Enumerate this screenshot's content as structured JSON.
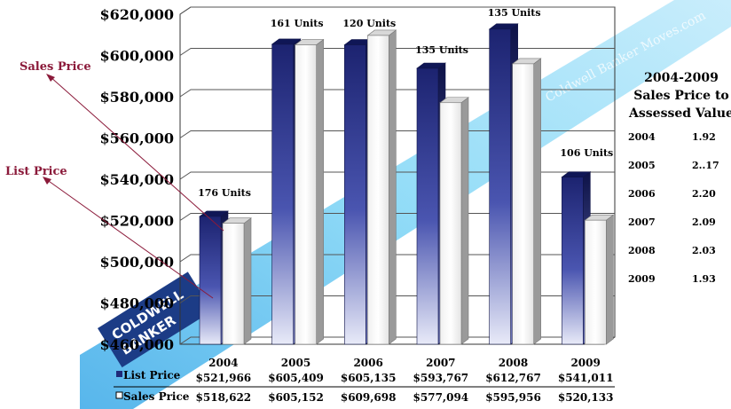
{
  "chart_data": {
    "type": "bar",
    "categories": [
      "2004",
      "2005",
      "2006",
      "2007",
      "2008",
      "2009"
    ],
    "series": [
      {
        "name": "List Price",
        "values": [
          521966,
          605409,
          605135,
          593767,
          612767,
          541011
        ],
        "labels": [
          "$521,966",
          "$605,409",
          "$605,135",
          "$593,767",
          "$612,767",
          "$541,011"
        ]
      },
      {
        "name": "Sales Price",
        "values": [
          518622,
          605152,
          609698,
          577094,
          595956,
          520133
        ],
        "labels": [
          "$518,622",
          "$605,152",
          "$609,698",
          "$577,094",
          "$595,956",
          "$520,133"
        ]
      }
    ],
    "unit_labels": [
      "176 Units",
      "161 Units",
      "120 Units",
      "135 Units",
      "135 Units",
      "106 Units"
    ],
    "ylim": [
      460000,
      620000
    ],
    "y_ticks": [
      {
        "value": 460000,
        "label": "$460,000"
      },
      {
        "value": 480000,
        "label": "$480,000"
      },
      {
        "value": 500000,
        "label": "$500,000"
      },
      {
        "value": 520000,
        "label": "$520,000"
      },
      {
        "value": 540000,
        "label": "$540,000"
      },
      {
        "value": 560000,
        "label": "$560,000"
      },
      {
        "value": 580000,
        "label": "$580,000"
      },
      {
        "value": 600000,
        "label": "$600,000"
      },
      {
        "value": 620000,
        "label": "$620,000"
      }
    ],
    "grid": true,
    "legend_placement": "bottom-left (data table)",
    "annotations": [
      "Sales Price",
      "List Price"
    ],
    "colors": {
      "list_price": "#1f2a7a",
      "sales_price": "#ffffff",
      "annotation_text": "#8b1a3a",
      "banner": "#58c6f0"
    }
  },
  "side_panel": {
    "title_line1": "2004-2009",
    "title_line2": "Sales Price to",
    "title_line3": "Assessed Value",
    "rows": [
      {
        "year": "2004",
        "ratio": "1.92"
      },
      {
        "year": "2005",
        "ratio": "2..17"
      },
      {
        "year": "2006",
        "ratio": "2.20"
      },
      {
        "year": "2007",
        "ratio": "2.09"
      },
      {
        "year": "2008",
        "ratio": "2.03"
      },
      {
        "year": "2009",
        "ratio": "1.93"
      }
    ]
  },
  "watermark": {
    "brand_text": "Coldwell Banker Moves.com",
    "logo_line1": "COLDWELL",
    "logo_line2": "BANKER"
  }
}
